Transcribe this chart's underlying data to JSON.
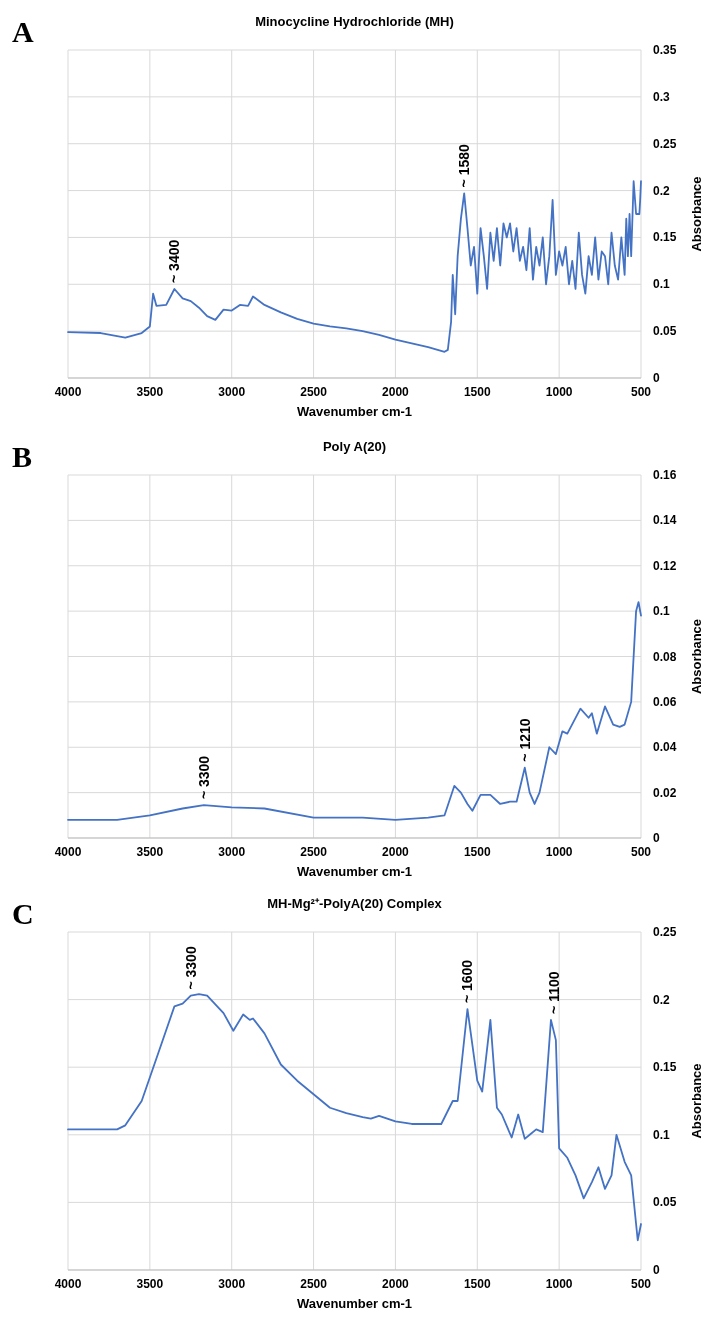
{
  "chart_data": [
    {
      "type": "line",
      "title": "Minocycline Hydrochloride (MH)",
      "xlabel": "Wavenumber cm-1",
      "ylabel": "Absorbance",
      "xlim": [
        4000,
        500
      ],
      "xticks": [
        4000,
        3500,
        3000,
        2500,
        2000,
        1500,
        1000,
        500
      ],
      "ylim": [
        0,
        0.35
      ],
      "yticks": [
        0,
        0.05,
        0.1,
        0.15,
        0.2,
        0.25,
        0.3,
        0.35
      ],
      "grid": true,
      "annotations": [
        "A",
        {
          "text": "~ 3400",
          "x": 3350,
          "y": 0.095
        },
        {
          "text": "~ 1580",
          "x": 1580,
          "y": 0.197
        }
      ],
      "series": [
        {
          "color": "#4472c4",
          "x": [
            4000,
            3800,
            3650,
            3550,
            3500,
            3480,
            3460,
            3400,
            3350,
            3300,
            3250,
            3200,
            3150,
            3100,
            3050,
            3000,
            2950,
            2900,
            2870,
            2800,
            2700,
            2600,
            2500,
            2400,
            2300,
            2200,
            2100,
            2000,
            1900,
            1800,
            1700,
            1680,
            1660,
            1650,
            1635,
            1620,
            1600,
            1580,
            1560,
            1540,
            1520,
            1500,
            1480,
            1460,
            1440,
            1420,
            1400,
            1380,
            1360,
            1340,
            1320,
            1300,
            1280,
            1260,
            1240,
            1220,
            1200,
            1180,
            1160,
            1140,
            1120,
            1100,
            1080,
            1060,
            1040,
            1020,
            1000,
            980,
            960,
            940,
            920,
            900,
            880,
            860,
            840,
            820,
            800,
            780,
            760,
            740,
            720,
            700,
            680,
            660,
            640,
            620,
            600,
            590,
            580,
            570,
            560,
            545,
            530,
            510,
            505,
            500
          ],
          "values": [
            0.049,
            0.048,
            0.043,
            0.048,
            0.055,
            0.09,
            0.077,
            0.078,
            0.095,
            0.085,
            0.082,
            0.075,
            0.066,
            0.062,
            0.073,
            0.072,
            0.078,
            0.077,
            0.087,
            0.078,
            0.07,
            0.063,
            0.058,
            0.055,
            0.053,
            0.05,
            0.046,
            0.041,
            0.037,
            0.033,
            0.028,
            0.03,
            0.06,
            0.11,
            0.068,
            0.13,
            0.17,
            0.197,
            0.16,
            0.12,
            0.14,
            0.09,
            0.16,
            0.13,
            0.095,
            0.155,
            0.125,
            0.16,
            0.12,
            0.165,
            0.15,
            0.165,
            0.135,
            0.16,
            0.125,
            0.14,
            0.115,
            0.16,
            0.105,
            0.14,
            0.12,
            0.15,
            0.1,
            0.13,
            0.19,
            0.11,
            0.135,
            0.12,
            0.14,
            0.1,
            0.125,
            0.095,
            0.155,
            0.11,
            0.09,
            0.13,
            0.11,
            0.15,
            0.105,
            0.135,
            0.13,
            0.1,
            0.155,
            0.12,
            0.105,
            0.15,
            0.11,
            0.17,
            0.13,
            0.175,
            0.13,
            0.21,
            0.175,
            0.175,
            0.19,
            0.21
          ]
        }
      ]
    },
    {
      "type": "line",
      "title": "Poly A(20)",
      "xlabel": "Wavenumber cm-1",
      "ylabel": "Absorbance",
      "xlim": [
        4000,
        500
      ],
      "xticks": [
        4000,
        3500,
        3000,
        2500,
        2000,
        1500,
        1000,
        500
      ],
      "ylim": [
        0,
        0.16
      ],
      "yticks": [
        0,
        0.02,
        0.04,
        0.06,
        0.08,
        0.1,
        0.12,
        0.14,
        0.16
      ],
      "grid": true,
      "annotations": [
        "B",
        {
          "text": "~ 3300",
          "x": 3170,
          "y": 0.0145
        },
        {
          "text": "~ 1210",
          "x": 1210,
          "y": 0.031
        }
      ],
      "series": [
        {
          "color": "#4472c4",
          "x": [
            4000,
            3700,
            3500,
            3300,
            3170,
            3000,
            2800,
            2500,
            2200,
            2000,
            1800,
            1700,
            1640,
            1600,
            1560,
            1530,
            1480,
            1420,
            1360,
            1300,
            1260,
            1210,
            1180,
            1150,
            1120,
            1060,
            1020,
            980,
            950,
            870,
            820,
            800,
            770,
            720,
            670,
            630,
            600,
            560,
            530,
            515,
            500
          ],
          "values": [
            0.008,
            0.008,
            0.01,
            0.013,
            0.0145,
            0.0135,
            0.013,
            0.009,
            0.009,
            0.008,
            0.009,
            0.01,
            0.023,
            0.02,
            0.015,
            0.012,
            0.019,
            0.019,
            0.015,
            0.016,
            0.016,
            0.031,
            0.02,
            0.015,
            0.02,
            0.04,
            0.037,
            0.047,
            0.046,
            0.057,
            0.053,
            0.055,
            0.046,
            0.058,
            0.05,
            0.049,
            0.05,
            0.06,
            0.1,
            0.104,
            0.098
          ]
        }
      ]
    },
    {
      "type": "line",
      "title": "MH-Mg²⁺-PolyA(20) Complex",
      "xlabel": "Wavenumber cm-1",
      "ylabel": "Absorbance",
      "xlim": [
        4000,
        500
      ],
      "xticks": [
        4000,
        3500,
        3000,
        2500,
        2000,
        1500,
        1000,
        500
      ],
      "ylim": [
        0,
        0.25
      ],
      "yticks": [
        0,
        0.05,
        0.1,
        0.15,
        0.2,
        0.25
      ],
      "grid": true,
      "annotations": [
        "C",
        {
          "text": "~ 3300",
          "x": 3250,
          "y": 0.203
        },
        {
          "text": "~ 1600",
          "x": 1560,
          "y": 0.193
        },
        {
          "text": "~ 1100",
          "x": 1030,
          "y": 0.185
        }
      ],
      "series": [
        {
          "color": "#4472c4",
          "x": [
            4000,
            3700,
            3650,
            3550,
            3450,
            3350,
            3300,
            3250,
            3200,
            3150,
            3050,
            2990,
            2930,
            2890,
            2870,
            2800,
            2700,
            2600,
            2500,
            2400,
            2300,
            2200,
            2150,
            2100,
            2000,
            1900,
            1720,
            1650,
            1620,
            1560,
            1500,
            1470,
            1420,
            1380,
            1350,
            1290,
            1250,
            1210,
            1180,
            1140,
            1100,
            1050,
            1020,
            1000,
            950,
            900,
            850,
            800,
            760,
            720,
            680,
            650,
            600,
            560,
            520,
            500
          ],
          "values": [
            0.104,
            0.104,
            0.107,
            0.125,
            0.16,
            0.195,
            0.197,
            0.203,
            0.204,
            0.203,
            0.19,
            0.177,
            0.189,
            0.185,
            0.186,
            0.175,
            0.152,
            0.14,
            0.13,
            0.12,
            0.116,
            0.113,
            0.112,
            0.114,
            0.11,
            0.108,
            0.108,
            0.125,
            0.125,
            0.193,
            0.14,
            0.132,
            0.185,
            0.12,
            0.115,
            0.098,
            0.115,
            0.097,
            0.1,
            0.104,
            0.102,
            0.185,
            0.17,
            0.09,
            0.083,
            0.07,
            0.053,
            0.065,
            0.076,
            0.06,
            0.07,
            0.1,
            0.08,
            0.07,
            0.022,
            0.034
          ]
        }
      ]
    }
  ]
}
